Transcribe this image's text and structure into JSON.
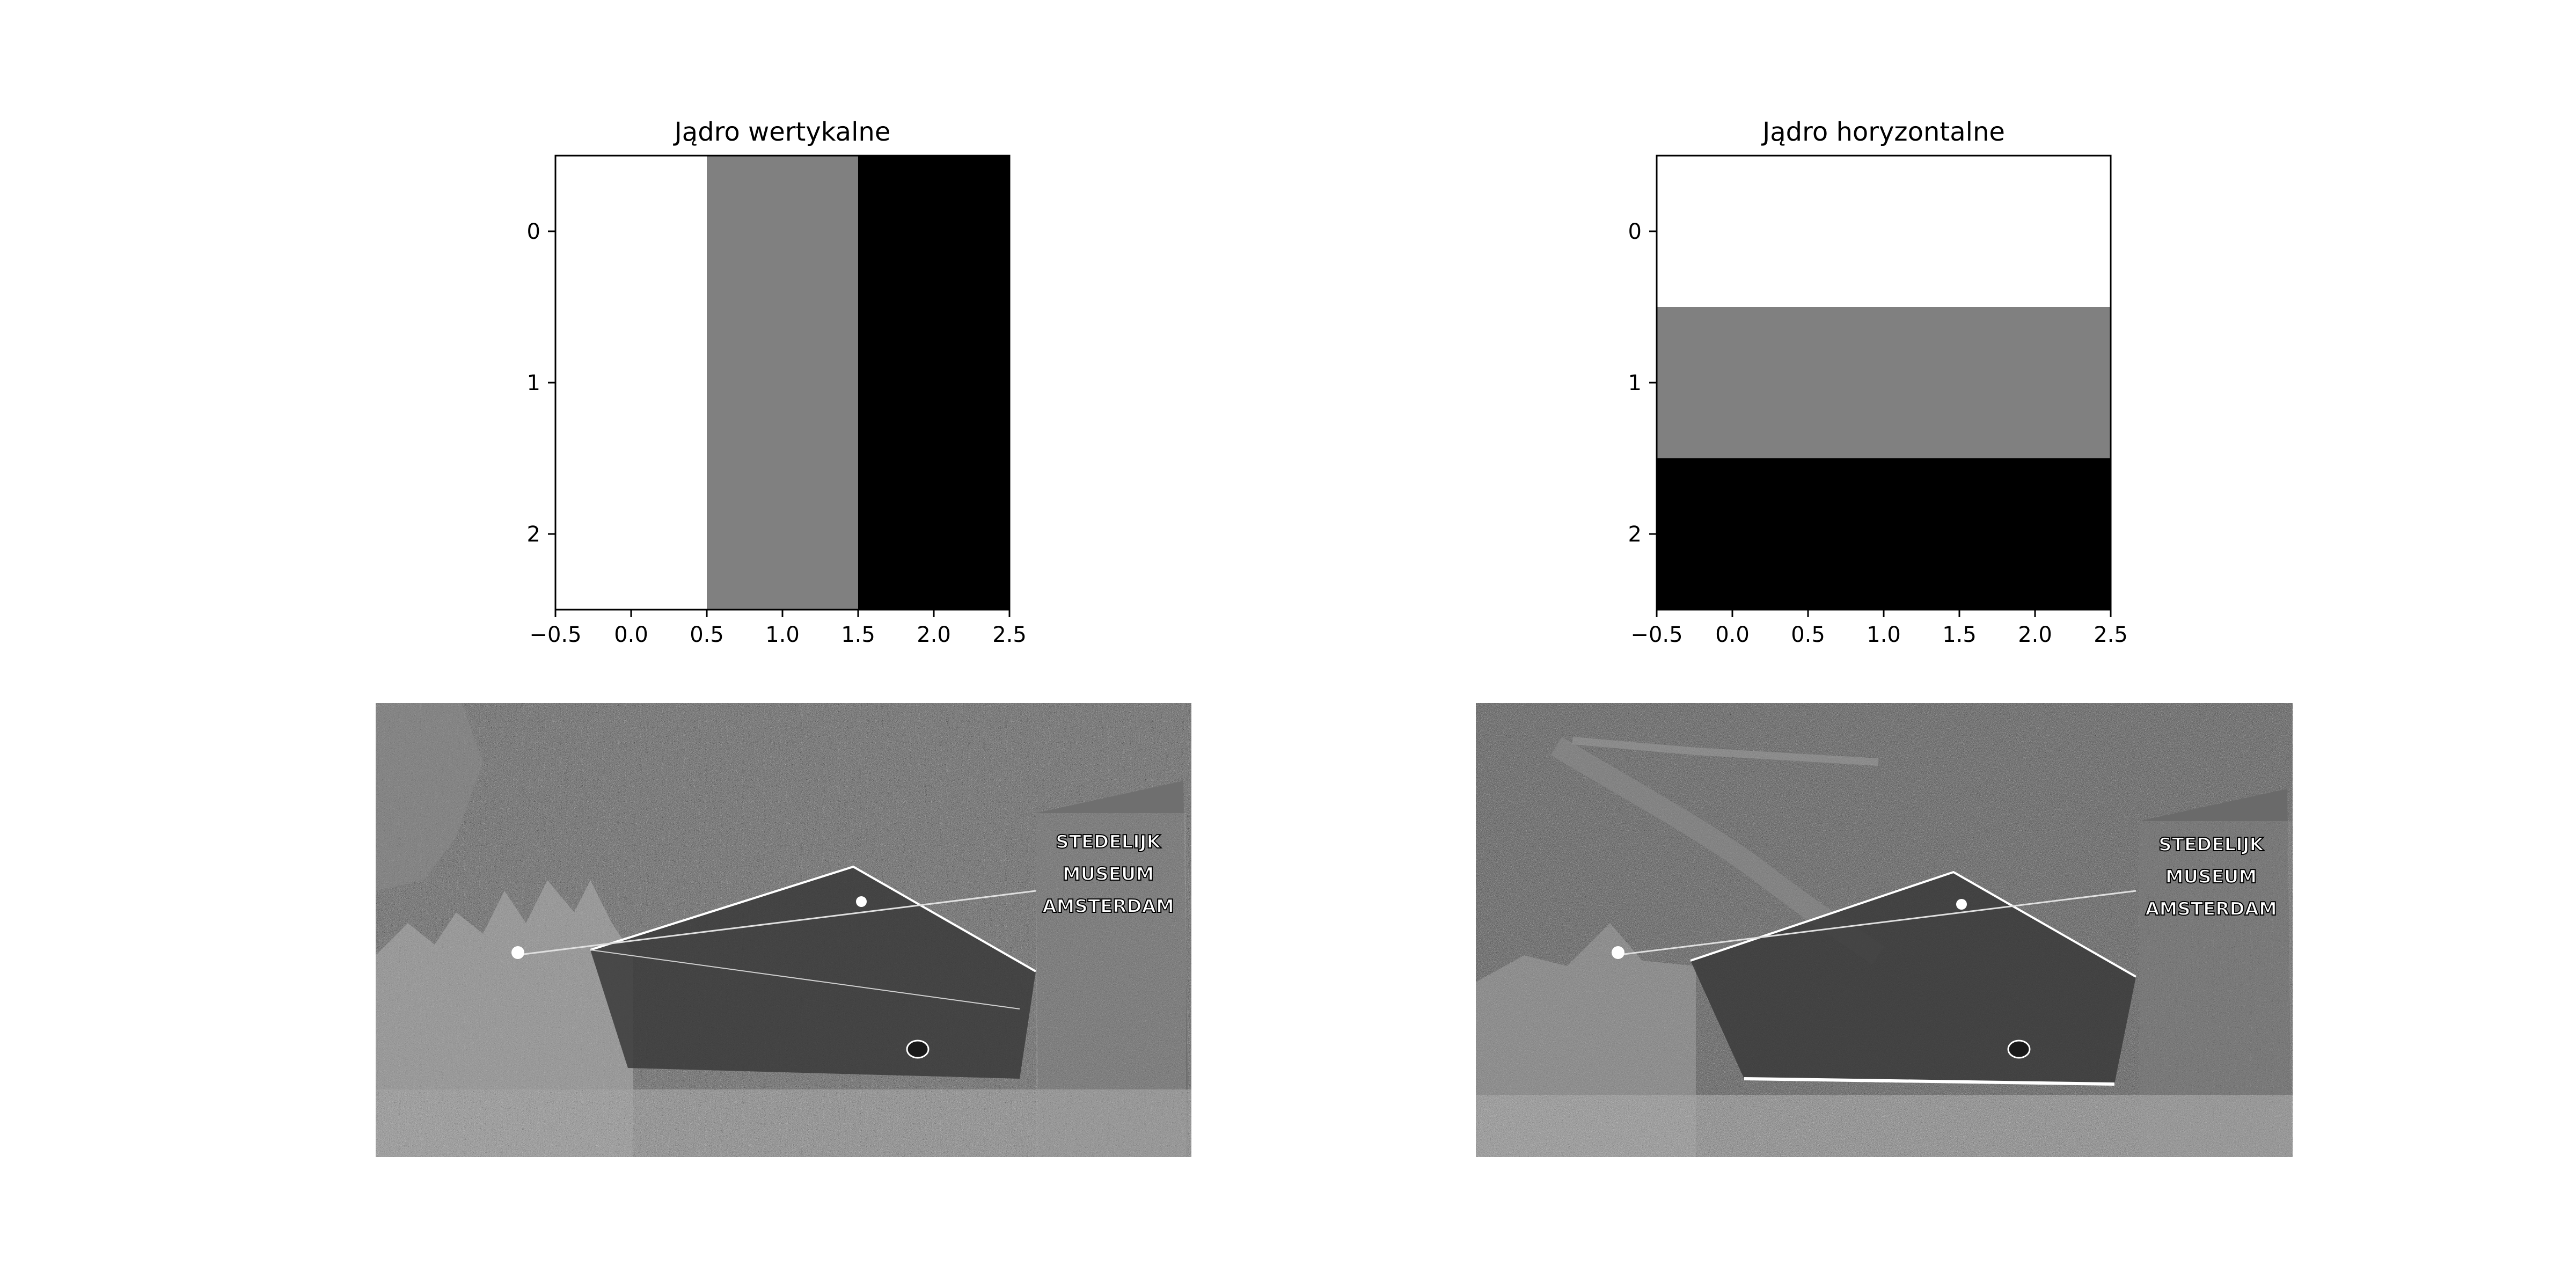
{
  "chart_data": [
    {
      "type": "heatmap",
      "title": "Jądro wertykalne",
      "colormap": "gray",
      "matrix": [
        [
          1,
          0,
          -1
        ],
        [
          1,
          0,
          -1
        ],
        [
          1,
          0,
          -1
        ]
      ],
      "xlim": [
        -0.5,
        2.5
      ],
      "ylim": [
        2.5,
        -0.5
      ],
      "xticks": [
        "−0.5",
        "0.0",
        "0.5",
        "1.0",
        "1.5",
        "2.0",
        "2.5"
      ],
      "yticks": [
        "0",
        "1",
        "2"
      ],
      "xtick_values": [
        -0.5,
        0.0,
        0.5,
        1.0,
        1.5,
        2.0,
        2.5
      ],
      "ytick_values": [
        0,
        1,
        2
      ]
    },
    {
      "type": "heatmap",
      "title": "Jądro horyzontalne",
      "colormap": "gray",
      "matrix": [
        [
          1,
          1,
          1
        ],
        [
          0,
          0,
          0
        ],
        [
          -1,
          -1,
          -1
        ]
      ],
      "xlim": [
        -0.5,
        2.5
      ],
      "ylim": [
        2.5,
        -0.5
      ],
      "xticks": [
        "−0.5",
        "0.0",
        "0.5",
        "1.0",
        "1.5",
        "2.0",
        "2.5"
      ],
      "yticks": [
        "0",
        "1",
        "2"
      ],
      "xtick_values": [
        -0.5,
        0.0,
        0.5,
        1.0,
        1.5,
        2.0,
        2.5
      ],
      "ytick_values": [
        0,
        1,
        2
      ]
    }
  ],
  "images": [
    {
      "name": "vertical-edge-result",
      "sign_text": [
        "STEDELIJK",
        "MUSEUM",
        "AMSTERDAM"
      ]
    },
    {
      "name": "horizontal-edge-result",
      "sign_text": [
        "STEDELIJK",
        "MUSEUM",
        "AMSTERDAM"
      ]
    }
  ],
  "colors": {
    "white": "#ffffff",
    "gray": "#808080",
    "black": "#000000"
  }
}
